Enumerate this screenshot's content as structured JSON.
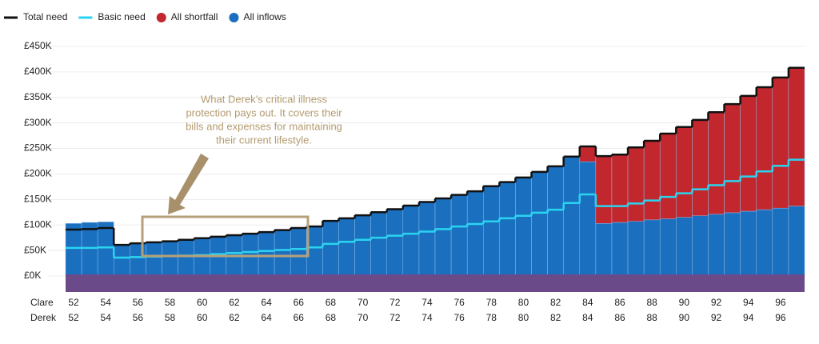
{
  "chart_data": {
    "type": "stacked-bar",
    "x": [
      52,
      53,
      54,
      55,
      56,
      57,
      58,
      59,
      60,
      61,
      62,
      63,
      64,
      65,
      66,
      67,
      68,
      69,
      70,
      71,
      72,
      73,
      74,
      75,
      76,
      77,
      78,
      79,
      80,
      81,
      82,
      83,
      84,
      85,
      86,
      87,
      88,
      89,
      90,
      91,
      92,
      93,
      94,
      95,
      96,
      97
    ],
    "xlim": [
      51.5,
      97.5
    ],
    "x_label_rows": [
      {
        "name": "Clare",
        "ticks": [
          52,
          54,
          56,
          58,
          60,
          62,
          64,
          66,
          68,
          70,
          72,
          74,
          76,
          78,
          80,
          82,
          84,
          86,
          88,
          90,
          92,
          94,
          96
        ]
      },
      {
        "name": "Derek",
        "ticks": [
          52,
          54,
          56,
          58,
          60,
          62,
          64,
          66,
          68,
          70,
          72,
          74,
          76,
          78,
          80,
          82,
          84,
          86,
          88,
          90,
          92,
          94,
          96
        ]
      }
    ],
    "ylim": [
      0,
      450
    ],
    "yticks": [
      {
        "value": 0,
        "label": "£0K"
      },
      {
        "value": 50,
        "label": "£50K"
      },
      {
        "value": 100,
        "label": "£100K"
      },
      {
        "value": 150,
        "label": "£150K"
      },
      {
        "value": 200,
        "label": "£200K"
      },
      {
        "value": 250,
        "label": "£250K"
      },
      {
        "value": 300,
        "label": "£300K"
      },
      {
        "value": 350,
        "label": "£350K"
      },
      {
        "value": 400,
        "label": "£400K"
      },
      {
        "value": 450,
        "label": "£450K"
      }
    ],
    "grid": true,
    "series": [
      {
        "name": "Total need",
        "kind": "step",
        "color": "#111111",
        "values": [
          91,
          92,
          94,
          61,
          64,
          66,
          68,
          71,
          74,
          77,
          80,
          83,
          86,
          90,
          94,
          97,
          108,
          113,
          119,
          125,
          131,
          138,
          145,
          152,
          159,
          166,
          176,
          184,
          193,
          204,
          215,
          234,
          254,
          235,
          238,
          252,
          265,
          279,
          292,
          306,
          321,
          337,
          353,
          370,
          389,
          408
        ]
      },
      {
        "name": "Basic need",
        "kind": "step",
        "color": "#2ad4f0",
        "values": [
          55,
          55,
          56,
          36,
          37,
          38,
          39,
          40,
          41,
          43,
          45,
          47,
          49,
          51,
          53,
          56,
          63,
          67,
          71,
          75,
          79,
          83,
          87,
          92,
          97,
          102,
          107,
          113,
          118,
          124,
          130,
          143,
          160,
          137,
          137,
          142,
          148,
          155,
          162,
          170,
          178,
          186,
          195,
          205,
          216,
          228
        ]
      },
      {
        "name": "All shortfall",
        "kind": "bar",
        "color": "#c1272d",
        "values": [
          0,
          0,
          0,
          0,
          0,
          0,
          0,
          0,
          0,
          0,
          0,
          0,
          0,
          0,
          0,
          0,
          0,
          0,
          0,
          0,
          0,
          0,
          0,
          0,
          0,
          0,
          0,
          0,
          0,
          0,
          0,
          0,
          30,
          132,
          133,
          145,
          155,
          167,
          177,
          188,
          200,
          213,
          226,
          240,
          256,
          271
        ]
      },
      {
        "name": "All inflows",
        "kind": "bar",
        "color": "#1a6fbf",
        "values": [
          103,
          105,
          106,
          61,
          64,
          66,
          68,
          71,
          74,
          77,
          80,
          83,
          86,
          90,
          94,
          97,
          108,
          113,
          119,
          125,
          131,
          138,
          145,
          152,
          159,
          166,
          176,
          184,
          193,
          204,
          215,
          234,
          224,
          103,
          105,
          107,
          110,
          112,
          115,
          118,
          121,
          124,
          127,
          130,
          133,
          137
        ]
      }
    ],
    "annotation": [
      "What Derek’s critical illness",
      "protection pays out. It covers their",
      "bills and expenses for maintaining",
      "their current lifestyle."
    ]
  }
}
